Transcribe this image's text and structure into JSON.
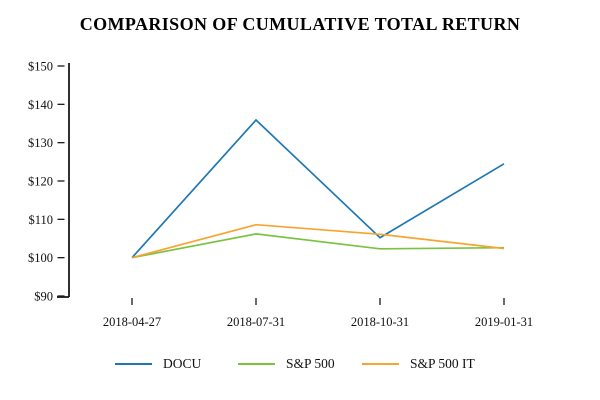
{
  "chart_data": {
    "type": "line",
    "title": "COMPARISON OF CUMULATIVE TOTAL RETURN",
    "xlabel": "",
    "ylabel": "",
    "x_labels": [
      "2018-04-27",
      "2018-07-31",
      "2018-10-31",
      "2019-01-31"
    ],
    "ylim": [
      90,
      150
    ],
    "y_ticks": [
      {
        "label": "$150",
        "value": 150
      },
      {
        "label": "$140",
        "value": 140
      },
      {
        "label": "$130",
        "value": 130
      },
      {
        "label": "$120",
        "value": 120
      },
      {
        "label": "$110",
        "value": 110
      },
      {
        "label": "$100",
        "value": 100
      },
      {
        "label": "$90",
        "value": 90
      }
    ],
    "series": [
      {
        "name": "DOCU",
        "color": "#1f77b4",
        "values": [
          100,
          135.9,
          105.2,
          124.5
        ]
      },
      {
        "name": "S&P 500",
        "color": "#7cc242",
        "values": [
          100,
          106.2,
          102.3,
          102.6
        ]
      },
      {
        "name": "S&P 500 IT",
        "color": "#f7a430",
        "values": [
          100,
          108.6,
          106.1,
          102.4
        ]
      }
    ],
    "legend_position": "bottom",
    "grid": false,
    "axis_color": "#1a1a1a",
    "text_color": "#111111"
  }
}
